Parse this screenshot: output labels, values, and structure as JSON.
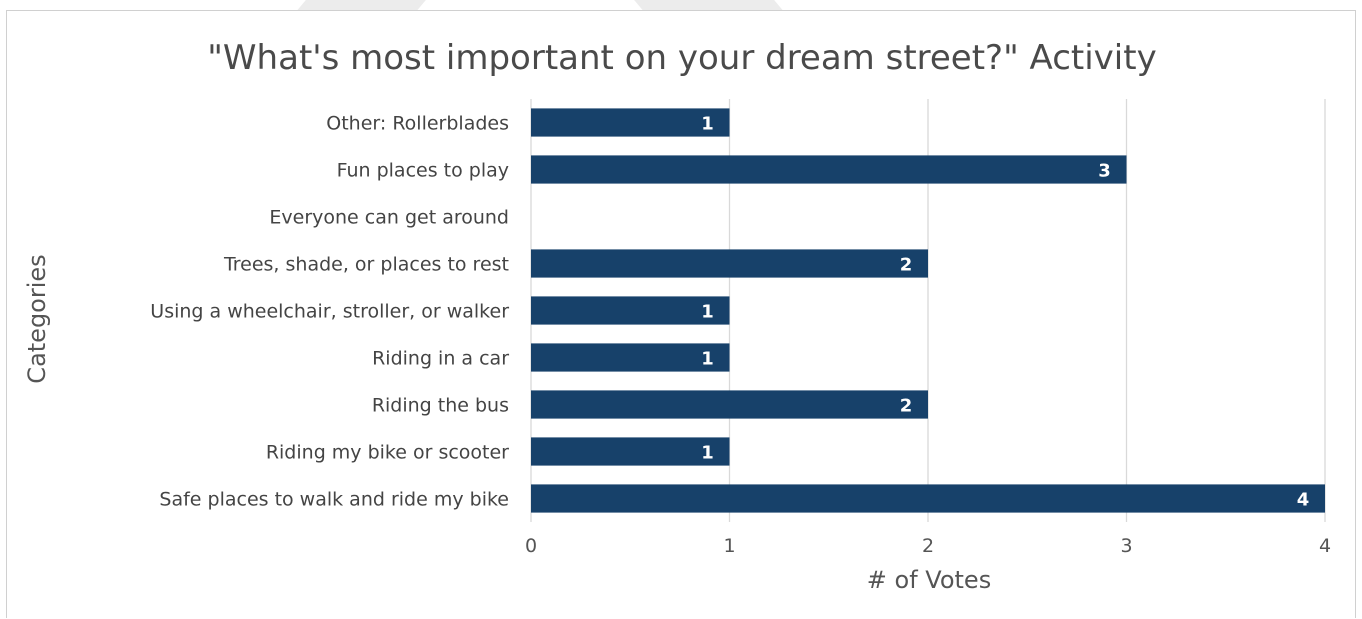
{
  "colors": {
    "bar": "#17416a",
    "grid": "#d9d9d9",
    "background": "#ffffff",
    "text": "#444444"
  },
  "chart_data": {
    "type": "bar",
    "orientation": "horizontal",
    "title": "\"What's most important on your dream street?\" Activity",
    "xlabel": "# of Votes",
    "ylabel": "Categories",
    "categories": [
      "Other: Rollerblades",
      "Fun places to play",
      "Everyone can get around",
      "Trees, shade, or places to rest",
      "Using a wheelchair, stroller, or walker",
      "Riding in a car",
      "Riding the bus",
      "Riding my bike or scooter",
      "Safe places to walk and ride my bike"
    ],
    "values": [
      1,
      3,
      0,
      2,
      1,
      1,
      2,
      1,
      4
    ],
    "data_labels": [
      "1",
      "3",
      "",
      "2",
      "1",
      "1",
      "2",
      "1",
      "4"
    ],
    "xlim": [
      0,
      4
    ],
    "x_ticks": [
      "0",
      "1",
      "2",
      "3",
      "4"
    ],
    "grid": "vertical",
    "legend": "none"
  }
}
